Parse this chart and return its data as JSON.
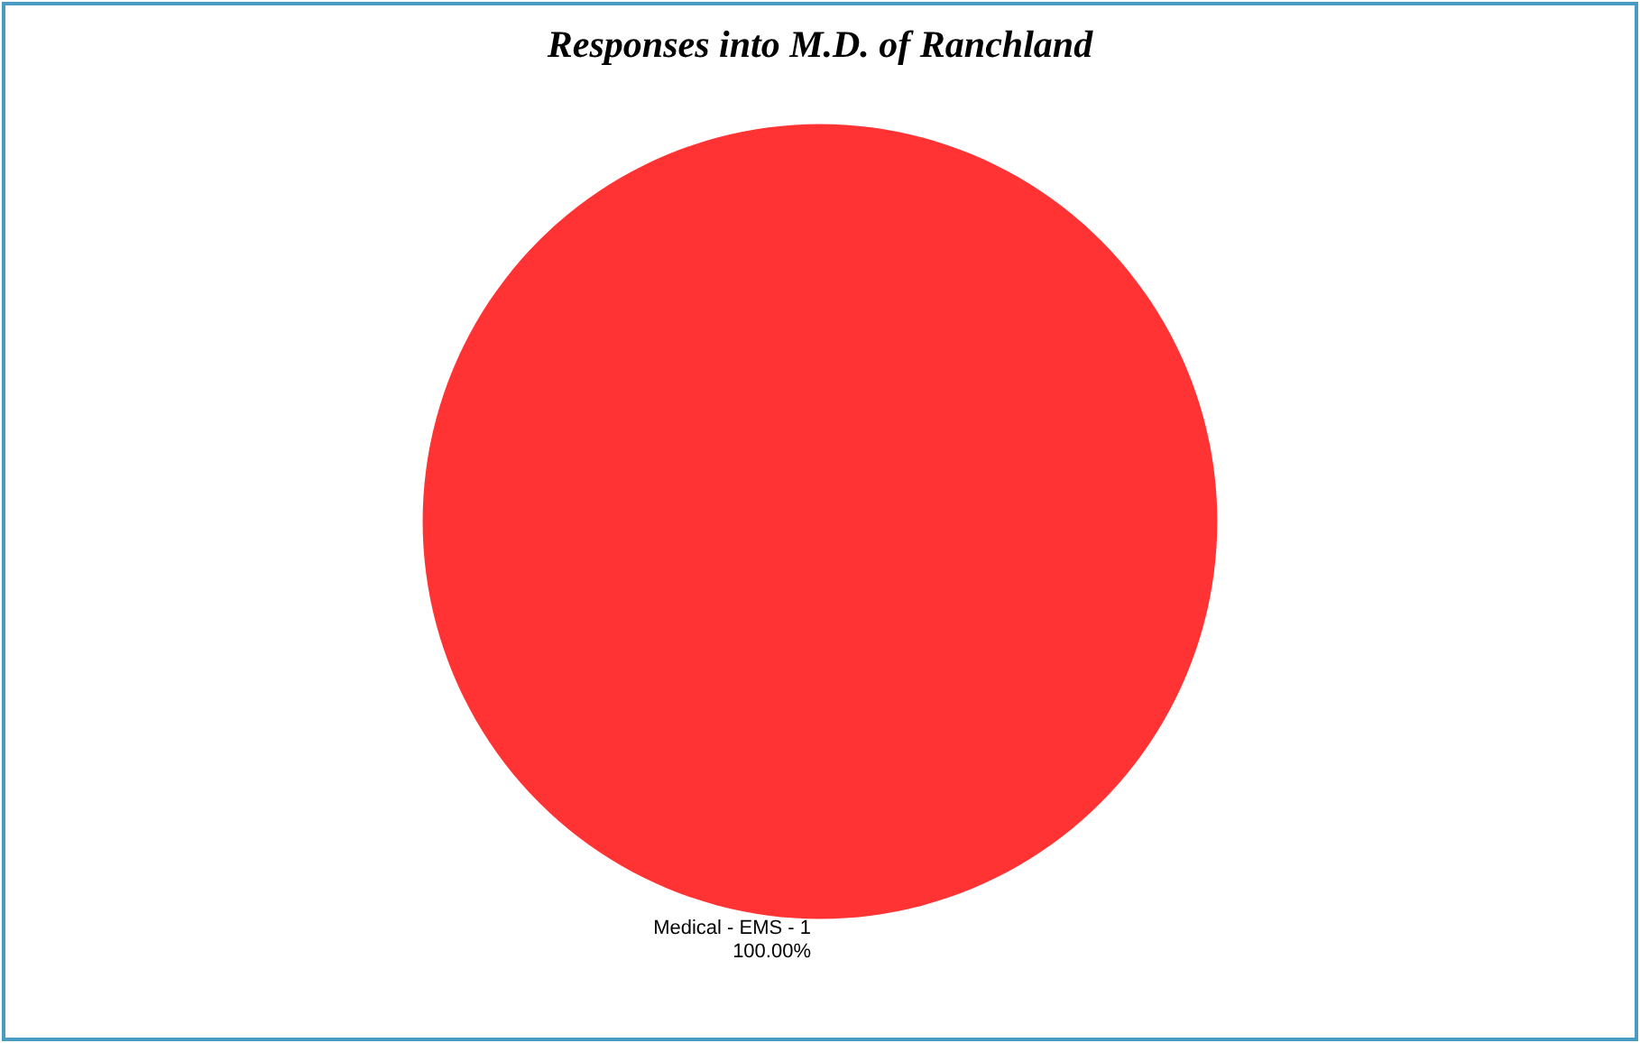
{
  "chart_data": {
    "type": "pie",
    "title": "Responses into M.D. of Ranchland",
    "categories": [
      "Medical - EMS - 1"
    ],
    "values": [
      100
    ],
    "value_labels": [
      "100.00%"
    ],
    "colors": [
      "#ff3333"
    ],
    "legend": false
  }
}
